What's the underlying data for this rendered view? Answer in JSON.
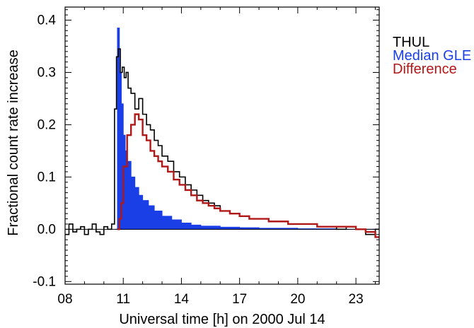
{
  "chart_data": {
    "type": "line",
    "title": "",
    "xlabel": "Universal time [h] on 2000 Jul 14",
    "ylabel": "Fractional count rate increase",
    "xlim": [
      8,
      24.2
    ],
    "ylim": [
      -0.105,
      0.425
    ],
    "xticks": [
      8,
      11,
      14,
      17,
      20,
      23
    ],
    "xtick_labels": [
      "08",
      "11",
      "14",
      "17",
      "20",
      "23"
    ],
    "yticks": [
      -0.1,
      0.0,
      0.1,
      0.2,
      0.3,
      0.4
    ],
    "ytick_labels": [
      "-0.1",
      "0.0",
      "0.1",
      "0.2",
      "0.3",
      "0.4"
    ],
    "grid": false,
    "legend_position": "right",
    "zero_line": true,
    "series": [
      {
        "name": "THUL",
        "style": "step",
        "color": "#000000",
        "x": [
          8.0,
          8.2,
          8.4,
          8.6,
          8.8,
          9.0,
          9.2,
          9.4,
          9.6,
          9.8,
          10.0,
          10.2,
          10.4,
          10.55,
          10.65,
          10.75,
          10.85,
          10.95,
          11.05,
          11.15,
          11.25,
          11.4,
          11.6,
          11.8,
          12.0,
          12.2,
          12.4,
          12.6,
          12.8,
          13.0,
          13.3,
          13.6,
          13.9,
          14.2,
          14.5,
          14.8,
          15.1,
          15.4,
          15.7,
          16.0,
          16.5,
          17.0,
          17.5,
          18.0,
          18.5,
          19.0,
          19.5,
          20.0,
          20.5,
          21.0,
          21.5,
          22.0,
          22.5,
          23.0,
          23.5,
          24.0
        ],
        "y": [
          -0.01,
          0.01,
          -0.005,
          0.0,
          0.005,
          -0.01,
          0.0,
          0.01,
          -0.005,
          -0.01,
          0.005,
          0.0,
          0.01,
          0.23,
          0.33,
          0.345,
          0.3,
          0.31,
          0.29,
          0.3,
          0.27,
          0.26,
          0.23,
          0.25,
          0.22,
          0.2,
          0.19,
          0.17,
          0.16,
          0.14,
          0.13,
          0.11,
          0.1,
          0.085,
          0.075,
          0.065,
          0.055,
          0.05,
          0.045,
          0.035,
          0.03,
          0.025,
          0.02,
          0.02,
          0.015,
          0.015,
          0.01,
          0.01,
          0.01,
          0.005,
          0.005,
          0.0,
          0.005,
          0.0,
          -0.01,
          0.0
        ]
      },
      {
        "name": "Median GLE",
        "style": "filled-step",
        "color": "#1a3fe6",
        "x": [
          10.6,
          10.7,
          10.8,
          10.9,
          11.0,
          11.1,
          11.2,
          11.4,
          11.6,
          11.8,
          12.0,
          12.3,
          12.6,
          13.0,
          13.5,
          14.0,
          14.5,
          15.0,
          16.0,
          17.0,
          18.0,
          20.0,
          22.0,
          24.0
        ],
        "y": [
          0.0,
          0.385,
          0.3,
          0.24,
          0.18,
          0.15,
          0.13,
          0.1,
          0.08,
          0.065,
          0.055,
          0.045,
          0.035,
          0.025,
          0.018,
          0.012,
          0.008,
          0.006,
          0.004,
          0.003,
          0.002,
          0.001,
          0.0,
          0.0
        ]
      },
      {
        "name": "Difference",
        "style": "step",
        "color": "#b01818",
        "x": [
          10.7,
          10.8,
          10.9,
          11.0,
          11.2,
          11.4,
          11.6,
          11.8,
          12.0,
          12.2,
          12.4,
          12.6,
          12.8,
          13.0,
          13.3,
          13.6,
          13.9,
          14.2,
          14.5,
          14.8,
          15.1,
          15.4,
          15.7,
          16.0,
          16.5,
          17.0,
          17.5,
          18.0,
          18.5,
          19.0,
          19.5,
          20.0,
          20.5,
          21.0,
          21.5,
          22.0,
          22.5,
          23.0,
          23.5,
          24.0
        ],
        "y": [
          0.0,
          0.02,
          0.05,
          0.12,
          0.18,
          0.2,
          0.22,
          0.21,
          0.18,
          0.17,
          0.15,
          0.14,
          0.13,
          0.12,
          0.11,
          0.095,
          0.085,
          0.075,
          0.065,
          0.055,
          0.05,
          0.045,
          0.04,
          0.035,
          0.03,
          0.025,
          0.02,
          0.02,
          0.015,
          0.015,
          0.01,
          0.01,
          0.01,
          0.005,
          0.005,
          0.005,
          0.005,
          0.0,
          -0.005,
          -0.015
        ]
      }
    ],
    "legend": [
      {
        "label": "THUL",
        "color": "#000000"
      },
      {
        "label": "Median GLE",
        "color": "#1a3fe6"
      },
      {
        "label": "Difference",
        "color": "#b01818"
      }
    ]
  }
}
